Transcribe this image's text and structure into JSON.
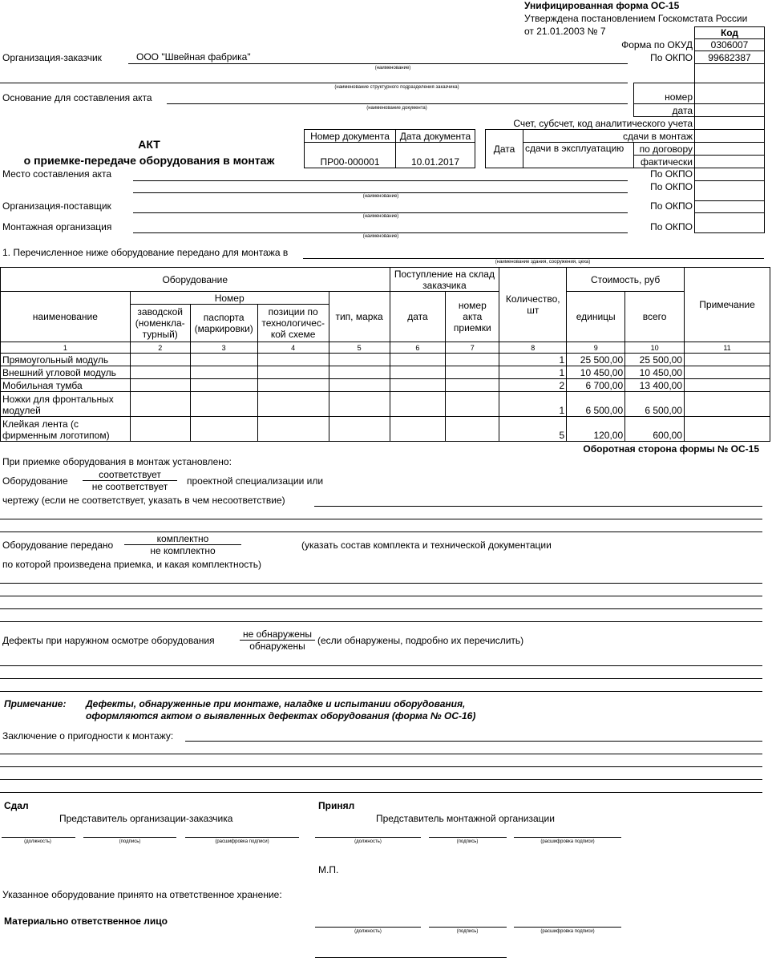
{
  "header": {
    "form_title": "Унифицированная форма ОС-15",
    "approved": "Утверждена постановлением Госкомстата России",
    "approved_date": "от 21.01.2003 № 7"
  },
  "codes": {
    "title": "Код",
    "okud_label": "Форма по ОКУД",
    "okud": "0306007",
    "okpo_label": "По ОКПО",
    "okpo": "99682387",
    "number_label": "номер",
    "date_label": "дата",
    "account_label": "Счет, субсчет, код аналитического учета",
    "date_group": "Дата",
    "to_montage": "сдачи в монтаж",
    "to_operation": "сдачи в эксплуатацию",
    "by_contract": "по договору",
    "actual": "фактически"
  },
  "org": {
    "customer_label": "Организация-заказчик",
    "customer": "ООО \"Швейная фабрика\"",
    "caption_name": "(наименование)",
    "caption_division": "(наименование структурного подразделения заказчика)",
    "basis_label": "Основание для составления акта",
    "caption_doc": "(наименование документа)",
    "place_label": "Место составления акта",
    "supplier_label": "Организация-поставщик",
    "montage_label": "Монтажная организация"
  },
  "doc": {
    "title": "АКТ",
    "subtitle": "о приемке-передаче оборудования в монтаж",
    "num_label": "Номер документа",
    "date_label": "Дата документа",
    "number": "ПР00-000001",
    "date": "10.01.2017"
  },
  "transfer": {
    "label": "1. Перечисленное ниже оборудование передано для монтажа в",
    "caption": "(наименование здания, сооружения, цеха)"
  },
  "table": {
    "h_equipment": "Оборудование",
    "h_name": "наименование",
    "h_number": "Номер",
    "h_factory": "заводской (номенкла-турный)",
    "h_passport": "паспорта (маркировки)",
    "h_position": "позиции по технологичес-кой схеме",
    "h_type": "тип, марка",
    "h_receipt": "Поступление на склад заказчика",
    "h_date": "дата",
    "h_act": "номер акта приемки",
    "h_qty": "Количество, шт",
    "h_cost": "Стоимость, руб",
    "h_unit": "единицы",
    "h_total": "всего",
    "h_note": "Примечание",
    "nums": [
      "1",
      "2",
      "3",
      "4",
      "5",
      "6",
      "7",
      "8",
      "9",
      "10",
      "11"
    ],
    "rows": [
      {
        "name": "Прямоугольный модуль",
        "qty": "1",
        "unit": "25 500,00",
        "total": "25 500,00"
      },
      {
        "name": "Внешний угловой модуль",
        "qty": "1",
        "unit": "10 450,00",
        "total": "10 450,00"
      },
      {
        "name": "Мобильная тумба",
        "qty": "2",
        "unit": "6 700,00",
        "total": "13 400,00"
      },
      {
        "name": "Ножки для фронтальных модулей",
        "qty": "1",
        "unit": "6 500,00",
        "total": "6 500,00"
      },
      {
        "name": "Клейкая лента (с фирменным логотипом)",
        "qty": "5",
        "unit": "120,00",
        "total": "600,00"
      }
    ]
  },
  "back": {
    "title": "Оборотная сторона формы № ОС-15",
    "established": "При приемке оборудования в монтаж установлено:",
    "equip": "Оборудование",
    "conforms": "соответствует",
    "not_conforms": "не соответствует",
    "spec": "проектной специализации или",
    "drawing": "чертежу (если не соответствует, указать в чем несоответствие)",
    "transferred": "Оборудование передано",
    "complete": "комплектно",
    "incomplete": "не комплектно",
    "docs": "(указать состав комплекта и технической документации",
    "docs2": "по которой произведена приемка, и какая комплектность)",
    "defects": "Дефекты при наружном осмотре оборудования",
    "not_found": "не обнаружены",
    "found": "обнаружены",
    "defects_note": "(если обнаружены, подробно их перечислить)",
    "note_label": "Примечание:",
    "note1": "Дефекты, обнаруженные при монтаже, наладке и испытании оборудования,",
    "note2": "оформляются актом о выявленных дефектах оборудования (форма № ОС-16)",
    "conclusion": "Заключение о пригодности к монтажу:"
  },
  "sign": {
    "gave": "Сдал",
    "gave_rep": "Представитель организации-заказчика",
    "took": "Принял",
    "took_rep": "Представитель монтажной организации",
    "position": "(должность)",
    "signature": "(подпись)",
    "decoding": "(расшифровка подписи)",
    "stamp": "М.П.",
    "storage": "Указанное оборудование принято на ответственное хранение:",
    "responsible": "Материально ответственное лицо"
  }
}
